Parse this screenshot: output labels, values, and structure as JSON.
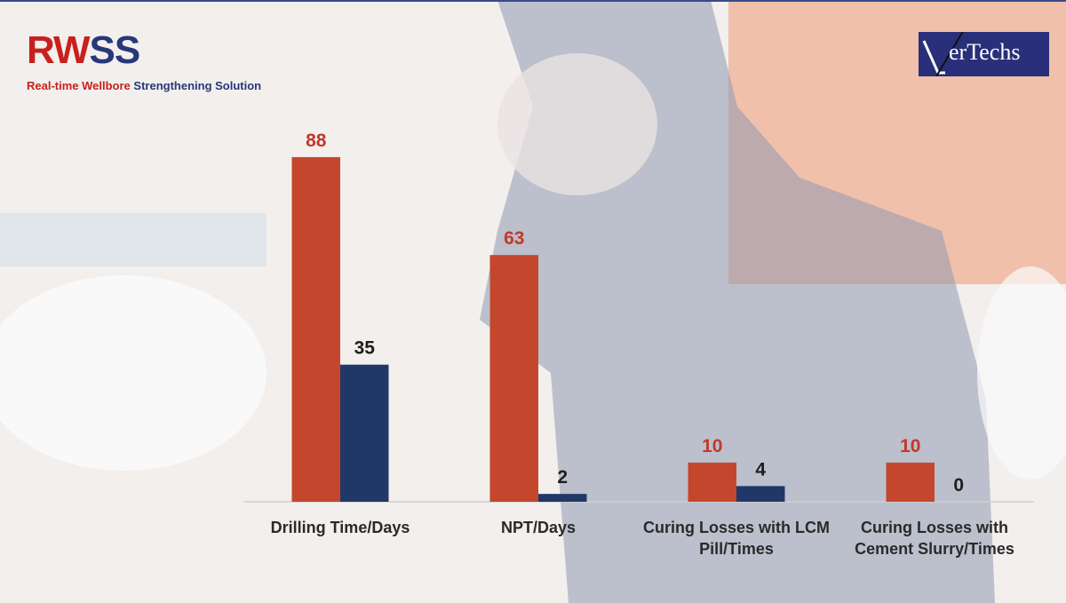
{
  "header": {
    "title_parts": [
      "RW",
      "SS"
    ],
    "subtitle_parts": [
      "Real-time Wellbore",
      "Strengthening Solution"
    ]
  },
  "logo": {
    "text": "erTechs"
  },
  "chart_data": {
    "type": "bar",
    "categories": [
      "Drilling Time/Days",
      "NPT/Days",
      "Curing Losses with LCM Pill/Times",
      "Curing Losses with Cement Slurry/Times"
    ],
    "series": [
      {
        "color": "#c4472d",
        "values": [
          88,
          63,
          10,
          10
        ]
      },
      {
        "color": "#1f3868",
        "values": [
          35,
          2,
          4,
          0
        ]
      }
    ],
    "ylim": [
      0,
      100
    ]
  }
}
